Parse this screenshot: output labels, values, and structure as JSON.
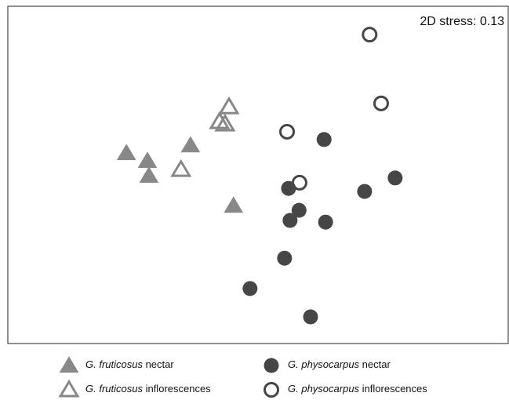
{
  "chart_data": {
    "type": "scatter",
    "annotation": "2D stress: 0.13",
    "xlim": [
      0,
      100
    ],
    "ylim": [
      0,
      100
    ],
    "series": [
      {
        "name": "G. fruticosus nectar",
        "color": "#888888",
        "marker": "triangle",
        "filled": true,
        "x": [
          23.7,
          27.9,
          28.2,
          36.5,
          45.1
        ],
        "values": [
          56.5,
          54.2,
          49.8,
          58.8,
          40.9
        ]
      },
      {
        "name": "G. physocarpus nectar",
        "color": "#464646",
        "marker": "circle",
        "filled": true,
        "x": [
          63.2,
          56.1,
          58.2,
          56.4,
          63.5,
          71.3,
          77.4,
          55.3,
          48.4,
          60.5
        ],
        "values": [
          60.5,
          46.0,
          39.5,
          36.5,
          36.0,
          45.1,
          49.1,
          25.3,
          16.3,
          7.9
        ]
      },
      {
        "name": "G. fruticosus inflorescences",
        "color": "#888888",
        "marker": "triangle",
        "filled": false,
        "x": [
          44.2,
          42.3,
          43.4,
          34.6
        ],
        "values": [
          70.2,
          65.8,
          65.1,
          51.6
        ]
      },
      {
        "name": "G. physocarpus inflorescences",
        "color": "#464646",
        "marker": "circle",
        "filled": false,
        "x": [
          72.3,
          74.6,
          55.8,
          58.3
        ],
        "values": [
          91.6,
          71.2,
          62.8,
          47.7
        ]
      }
    ]
  }
}
